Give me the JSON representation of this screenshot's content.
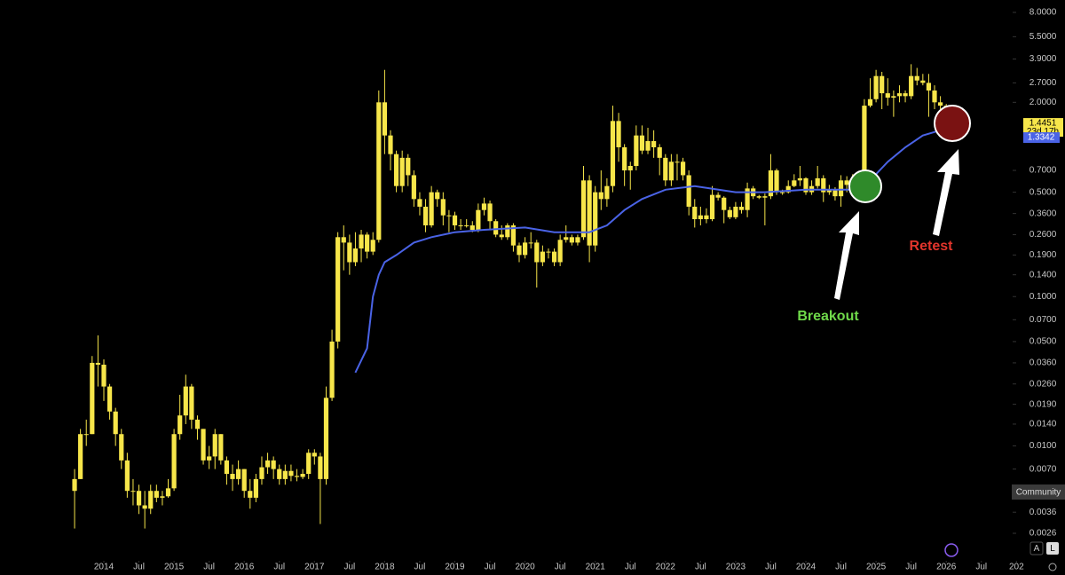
{
  "chart_data": {
    "type": "candlestick",
    "log_scale": true,
    "color": "#f7e64a",
    "x": [
      "2013-08",
      "2013-09",
      "2013-10",
      "2013-11",
      "2013-12",
      "2014-01",
      "2014-02",
      "2014-03",
      "2014-04",
      "2014-05",
      "2014-06",
      "2014-07",
      "2014-08",
      "2014-09",
      "2014-10",
      "2014-11",
      "2014-12",
      "2015-01",
      "2015-02",
      "2015-03",
      "2015-04",
      "2015-05",
      "2015-06",
      "2015-07",
      "2015-08",
      "2015-09",
      "2015-10",
      "2015-11",
      "2015-12",
      "2016-01",
      "2016-02",
      "2016-03",
      "2016-04",
      "2016-05",
      "2016-06",
      "2016-07",
      "2016-08",
      "2016-09",
      "2016-10",
      "2016-11",
      "2016-12",
      "2017-01",
      "2017-02",
      "2017-03",
      "2017-04",
      "2017-05",
      "2017-06",
      "2017-07",
      "2017-08",
      "2017-09",
      "2017-10",
      "2017-11",
      "2017-12",
      "2018-01",
      "2018-02",
      "2018-03",
      "2018-04",
      "2018-05",
      "2018-06",
      "2018-07",
      "2018-08",
      "2018-09",
      "2018-10",
      "2018-11",
      "2018-12",
      "2019-01",
      "2019-02",
      "2019-03",
      "2019-04",
      "2019-05",
      "2019-06",
      "2019-07",
      "2019-08",
      "2019-09",
      "2019-10",
      "2019-11",
      "2019-12",
      "2020-01",
      "2020-02",
      "2020-03",
      "2020-04",
      "2020-05",
      "2020-06",
      "2020-07",
      "2020-08",
      "2020-09",
      "2020-10",
      "2020-11",
      "2020-12",
      "2021-01",
      "2021-02",
      "2021-03",
      "2021-04",
      "2021-05",
      "2021-06",
      "2021-07",
      "2021-08",
      "2021-09",
      "2021-10",
      "2021-11",
      "2021-12",
      "2022-01",
      "2022-02",
      "2022-03",
      "2022-04",
      "2022-05",
      "2022-06",
      "2022-07",
      "2022-08",
      "2022-09",
      "2022-10",
      "2022-11",
      "2022-12",
      "2023-01",
      "2023-02",
      "2023-03",
      "2023-04",
      "2023-05",
      "2023-06",
      "2023-07",
      "2023-08",
      "2023-09",
      "2023-10",
      "2023-11",
      "2023-12",
      "2024-01",
      "2024-02",
      "2024-03",
      "2024-04",
      "2024-05",
      "2024-06",
      "2024-07",
      "2024-08",
      "2024-09",
      "2024-10",
      "2024-11",
      "2024-12",
      "2025-01",
      "2025-02",
      "2025-03",
      "2025-04",
      "2025-05",
      "2025-06",
      "2025-07",
      "2025-08",
      "2025-09",
      "2025-10",
      "2025-11",
      "2025-12",
      "2026-01",
      "2026-02"
    ],
    "open": [
      0.005,
      0.006,
      0.012,
      0.012,
      0.036,
      0.035,
      0.025,
      0.017,
      0.012,
      0.008,
      0.005,
      0.005,
      0.004,
      0.0038,
      0.005,
      0.0045,
      0.0046,
      0.0052,
      0.012,
      0.016,
      0.025,
      0.015,
      0.013,
      0.008,
      0.0085,
      0.012,
      0.008,
      0.0065,
      0.006,
      0.007,
      0.005,
      0.0045,
      0.006,
      0.0072,
      0.008,
      0.007,
      0.006,
      0.0068,
      0.0063,
      0.0062,
      0.0065,
      0.009,
      0.0085,
      0.006,
      0.021,
      0.05,
      0.25,
      0.23,
      0.17,
      0.21,
      0.26,
      0.2,
      0.24,
      2.0,
      1.2,
      0.9,
      0.55,
      0.85,
      0.65,
      0.45,
      0.4,
      0.3,
      0.5,
      0.45,
      0.35,
      0.35,
      0.3,
      0.3,
      0.3,
      0.28,
      0.38,
      0.42,
      0.32,
      0.26,
      0.25,
      0.3,
      0.22,
      0.19,
      0.23,
      0.23,
      0.17,
      0.2,
      0.2,
      0.17,
      0.24,
      0.25,
      0.23,
      0.25,
      0.6,
      0.22,
      0.5,
      0.45,
      0.55,
      1.5,
      1.0,
      0.7,
      0.75,
      1.2,
      0.95,
      1.1,
      1.0,
      0.85,
      0.6,
      0.8,
      0.8,
      0.65,
      0.4,
      0.33,
      0.35,
      0.33,
      0.48,
      0.46,
      0.38,
      0.34,
      0.4,
      0.38,
      0.53,
      0.47,
      0.46,
      0.47,
      0.7,
      0.5,
      0.5,
      0.55,
      0.6,
      0.62,
      0.5,
      0.55,
      0.62,
      0.5,
      0.52,
      0.47,
      0.6,
      0.56,
      0.58,
      0.52,
      1.9,
      2.1,
      3.0,
      2.3,
      2.15,
      2.2,
      2.3,
      2.2,
      3.0,
      2.8,
      2.7,
      2.4,
      2.0,
      1.9,
      1.6
    ],
    "high": [
      0.007,
      0.013,
      0.015,
      0.04,
      0.055,
      0.038,
      0.026,
      0.018,
      0.013,
      0.009,
      0.006,
      0.0055,
      0.005,
      0.0055,
      0.0055,
      0.005,
      0.006,
      0.013,
      0.022,
      0.03,
      0.026,
      0.016,
      0.013,
      0.01,
      0.013,
      0.012,
      0.0085,
      0.0075,
      0.008,
      0.007,
      0.006,
      0.0065,
      0.0085,
      0.009,
      0.0085,
      0.0075,
      0.0075,
      0.0075,
      0.007,
      0.007,
      0.0095,
      0.0095,
      0.009,
      0.025,
      0.06,
      0.27,
      0.3,
      0.26,
      0.27,
      0.28,
      0.27,
      0.27,
      2.4,
      3.3,
      1.3,
      0.95,
      0.95,
      0.9,
      0.7,
      0.5,
      0.45,
      0.55,
      0.52,
      0.5,
      0.38,
      0.37,
      0.33,
      0.33,
      0.32,
      0.42,
      0.46,
      0.44,
      0.33,
      0.3,
      0.31,
      0.31,
      0.23,
      0.25,
      0.27,
      0.24,
      0.22,
      0.21,
      0.21,
      0.26,
      0.3,
      0.26,
      0.26,
      0.75,
      0.65,
      0.55,
      0.7,
      0.62,
      1.9,
      1.7,
      1.05,
      0.8,
      1.4,
      1.4,
      1.35,
      1.3,
      1.05,
      0.9,
      0.9,
      0.9,
      0.85,
      0.7,
      0.45,
      0.4,
      0.39,
      0.55,
      0.5,
      0.47,
      0.4,
      0.43,
      0.43,
      0.58,
      0.55,
      0.48,
      0.49,
      0.9,
      0.72,
      0.52,
      0.6,
      0.66,
      0.75,
      0.63,
      0.6,
      0.75,
      0.65,
      0.56,
      0.54,
      0.65,
      0.64,
      0.66,
      0.6,
      2.1,
      2.9,
      3.3,
      3.2,
      2.9,
      2.4,
      2.6,
      2.4,
      3.6,
      3.4,
      3.1,
      3.1,
      2.6,
      2.2,
      1.95,
      1.7
    ],
    "low": [
      0.0028,
      0.006,
      0.01,
      0.012,
      0.025,
      0.02,
      0.015,
      0.01,
      0.007,
      0.0045,
      0.004,
      0.0035,
      0.0028,
      0.0035,
      0.0042,
      0.004,
      0.0045,
      0.005,
      0.011,
      0.014,
      0.013,
      0.011,
      0.0075,
      0.007,
      0.007,
      0.0075,
      0.0055,
      0.005,
      0.0055,
      0.0045,
      0.0038,
      0.0042,
      0.0055,
      0.0065,
      0.006,
      0.0055,
      0.0055,
      0.0058,
      0.0058,
      0.006,
      0.006,
      0.0075,
      0.003,
      0.0055,
      0.02,
      0.045,
      0.15,
      0.14,
      0.16,
      0.17,
      0.18,
      0.19,
      0.23,
      0.9,
      0.7,
      0.5,
      0.5,
      0.55,
      0.4,
      0.35,
      0.27,
      0.29,
      0.4,
      0.3,
      0.27,
      0.28,
      0.28,
      0.29,
      0.27,
      0.27,
      0.35,
      0.28,
      0.25,
      0.24,
      0.24,
      0.2,
      0.17,
      0.18,
      0.21,
      0.115,
      0.16,
      0.18,
      0.16,
      0.16,
      0.23,
      0.22,
      0.22,
      0.24,
      0.17,
      0.2,
      0.38,
      0.4,
      0.5,
      0.8,
      0.55,
      0.52,
      0.7,
      0.9,
      0.9,
      0.85,
      0.65,
      0.55,
      0.55,
      0.6,
      0.6,
      0.35,
      0.29,
      0.3,
      0.31,
      0.32,
      0.44,
      0.31,
      0.33,
      0.33,
      0.36,
      0.34,
      0.45,
      0.45,
      0.3,
      0.45,
      0.48,
      0.48,
      0.49,
      0.54,
      0.55,
      0.48,
      0.48,
      0.53,
      0.43,
      0.48,
      0.44,
      0.4,
      0.5,
      0.52,
      0.5,
      0.5,
      1.85,
      2.0,
      1.8,
      1.9,
      1.6,
      2.0,
      2.0,
      2.1,
      2.6,
      2.6,
      1.6,
      1.8,
      1.8,
      1.55,
      1.4
    ],
    "close": [
      0.006,
      0.012,
      0.012,
      0.036,
      0.035,
      0.025,
      0.017,
      0.012,
      0.008,
      0.005,
      0.005,
      0.004,
      0.0038,
      0.005,
      0.0045,
      0.0046,
      0.0052,
      0.012,
      0.016,
      0.025,
      0.015,
      0.013,
      0.008,
      0.0085,
      0.012,
      0.008,
      0.0065,
      0.006,
      0.007,
      0.005,
      0.0045,
      0.006,
      0.0072,
      0.008,
      0.007,
      0.006,
      0.0068,
      0.0063,
      0.0062,
      0.0065,
      0.009,
      0.0085,
      0.006,
      0.021,
      0.05,
      0.25,
      0.23,
      0.17,
      0.21,
      0.26,
      0.2,
      0.24,
      2.0,
      1.2,
      0.9,
      0.55,
      0.85,
      0.65,
      0.45,
      0.4,
      0.3,
      0.5,
      0.45,
      0.35,
      0.35,
      0.3,
      0.3,
      0.3,
      0.28,
      0.38,
      0.42,
      0.32,
      0.26,
      0.25,
      0.3,
      0.22,
      0.19,
      0.23,
      0.23,
      0.17,
      0.2,
      0.2,
      0.17,
      0.24,
      0.25,
      0.23,
      0.25,
      0.6,
      0.22,
      0.5,
      0.45,
      0.55,
      1.5,
      1.0,
      0.7,
      0.75,
      1.2,
      0.95,
      1.1,
      1.0,
      0.85,
      0.6,
      0.8,
      0.8,
      0.65,
      0.4,
      0.33,
      0.35,
      0.33,
      0.48,
      0.46,
      0.38,
      0.34,
      0.4,
      0.38,
      0.53,
      0.47,
      0.46,
      0.47,
      0.7,
      0.5,
      0.5,
      0.55,
      0.6,
      0.62,
      0.5,
      0.55,
      0.62,
      0.5,
      0.52,
      0.47,
      0.6,
      0.56,
      0.58,
      0.52,
      1.9,
      2.1,
      3.0,
      2.3,
      2.15,
      2.2,
      2.3,
      2.2,
      3.0,
      2.8,
      2.7,
      2.4,
      2.0,
      1.9,
      1.6,
      1.4451
    ],
    "ma": {
      "color": "#4a63e6",
      "x": [
        "2017-08",
        "2017-10",
        "2017-11",
        "2017-12",
        "2018-01",
        "2018-03",
        "2018-06",
        "2018-09",
        "2019-01",
        "2019-06",
        "2020-01",
        "2020-06",
        "2020-12",
        "2021-03",
        "2021-06",
        "2021-09",
        "2022-01",
        "2022-06",
        "2023-01",
        "2023-06",
        "2024-01",
        "2024-10",
        "2024-12",
        "2025-03",
        "2025-06",
        "2025-09",
        "2025-12",
        "2026-02"
      ],
      "values": [
        0.031,
        0.045,
        0.1,
        0.14,
        0.17,
        0.19,
        0.23,
        0.25,
        0.27,
        0.28,
        0.29,
        0.27,
        0.27,
        0.3,
        0.38,
        0.45,
        0.52,
        0.55,
        0.5,
        0.5,
        0.52,
        0.52,
        0.6,
        0.8,
        1.0,
        1.2,
        1.3,
        1.3342
      ]
    },
    "ylim": [
      0.0026,
      8
    ],
    "yticks": [
      {
        "value": 8,
        "label": "8.0000"
      },
      {
        "value": 5.5,
        "label": "5.5000"
      },
      {
        "value": 3.9,
        "label": "3.9000"
      },
      {
        "value": 2.7,
        "label": "2.7000"
      },
      {
        "value": 2,
        "label": "2.0000"
      },
      {
        "value": 0.7,
        "label": "0.7000"
      },
      {
        "value": 0.5,
        "label": "0.5000"
      },
      {
        "value": 0.36,
        "label": "0.3600"
      },
      {
        "value": 0.26,
        "label": "0.2600"
      },
      {
        "value": 0.19,
        "label": "0.1900"
      },
      {
        "value": 0.14,
        "label": "0.1400"
      },
      {
        "value": 0.1,
        "label": "0.1000"
      },
      {
        "value": 0.07,
        "label": "0.0700"
      },
      {
        "value": 0.05,
        "label": "0.0500"
      },
      {
        "value": 0.036,
        "label": "0.0360"
      },
      {
        "value": 0.026,
        "label": "0.0260"
      },
      {
        "value": 0.019,
        "label": "0.0190"
      },
      {
        "value": 0.014,
        "label": "0.0140"
      },
      {
        "value": 0.01,
        "label": "0.0100"
      },
      {
        "value": 0.007,
        "label": "0.0070"
      },
      {
        "value": 0.0036,
        "label": "0.0036"
      },
      {
        "value": 0.0026,
        "label": "0.0026"
      }
    ],
    "xticks": [
      {
        "value": "2014-01",
        "label": "2014"
      },
      {
        "value": "2014-07",
        "label": "Jul"
      },
      {
        "value": "2015-01",
        "label": "2015"
      },
      {
        "value": "2015-07",
        "label": "Jul"
      },
      {
        "value": "2016-01",
        "label": "2016"
      },
      {
        "value": "2016-07",
        "label": "Jul"
      },
      {
        "value": "2017-01",
        "label": "2017"
      },
      {
        "value": "2017-07",
        "label": "Jul"
      },
      {
        "value": "2018-01",
        "label": "2018"
      },
      {
        "value": "2018-07",
        "label": "Jul"
      },
      {
        "value": "2019-01",
        "label": "2019"
      },
      {
        "value": "2019-07",
        "label": "Jul"
      },
      {
        "value": "2020-01",
        "label": "2020"
      },
      {
        "value": "2020-07",
        "label": "Jul"
      },
      {
        "value": "2021-01",
        "label": "2021"
      },
      {
        "value": "2021-07",
        "label": "Jul"
      },
      {
        "value": "2022-01",
        "label": "2022"
      },
      {
        "value": "2022-07",
        "label": "Jul"
      },
      {
        "value": "2023-01",
        "label": "2023"
      },
      {
        "value": "2023-07",
        "label": "Jul"
      },
      {
        "value": "2024-01",
        "label": "2024"
      },
      {
        "value": "2024-07",
        "label": "Jul"
      },
      {
        "value": "2025-01",
        "label": "2025"
      },
      {
        "value": "2025-07",
        "label": "Jul"
      },
      {
        "value": "2026-01",
        "label": "2026"
      },
      {
        "value": "2026-07",
        "label": "Jul"
      },
      {
        "value": "2027-01",
        "label": "202"
      }
    ],
    "last_price": 1.4451,
    "countdown": "23d 17h",
    "ma_last": 1.3342,
    "annotations": [
      "Breakout",
      "Retest"
    ]
  },
  "ui": {
    "community": "Community",
    "auto": "A",
    "log": "L"
  }
}
